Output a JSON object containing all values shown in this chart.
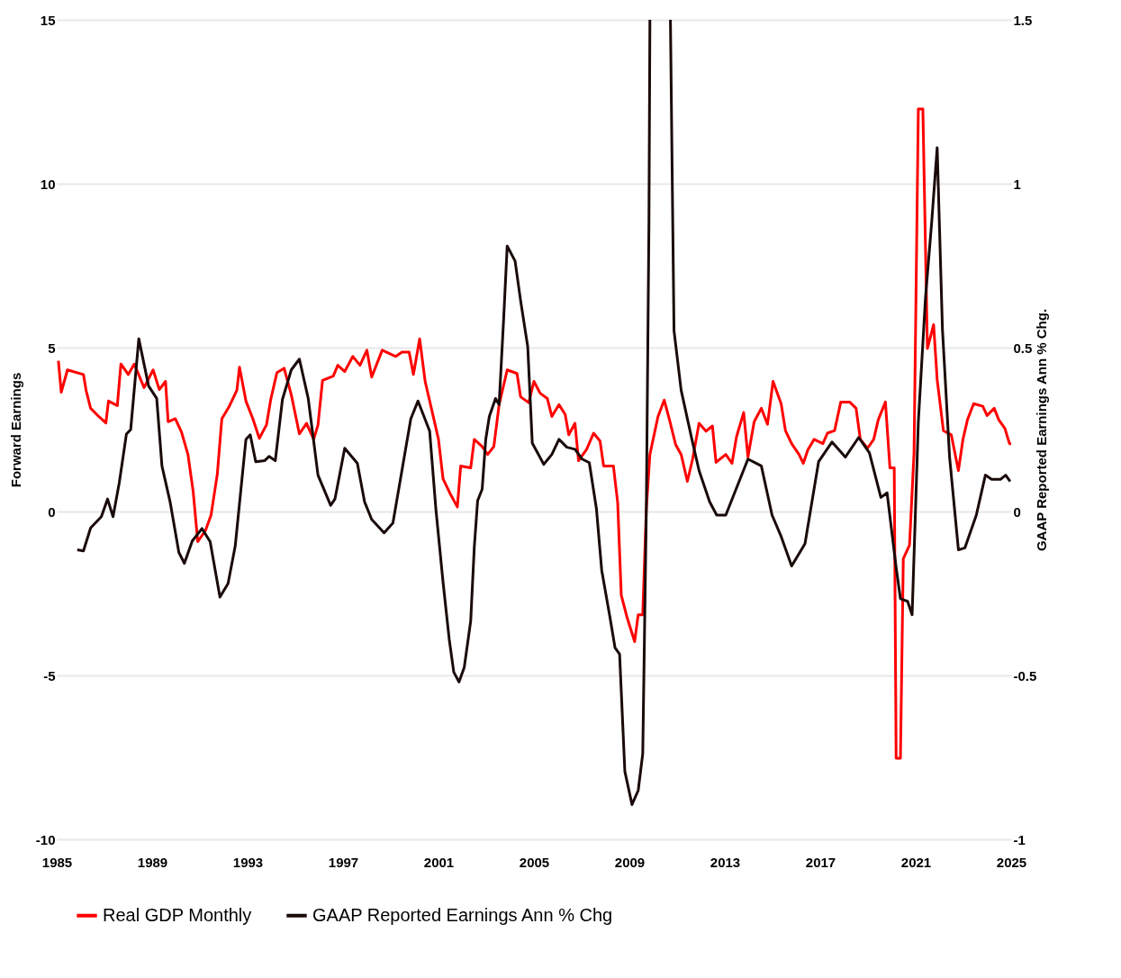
{
  "chart_data": {
    "type": "line",
    "ylabel": "Forward Earnings",
    "y2label": "GAAP Reported Earnings  Ann % Chg.",
    "xlim": [
      1985,
      2025
    ],
    "xticks": [
      1985,
      1989,
      1993,
      1997,
      2001,
      2005,
      2009,
      2013,
      2017,
      2021,
      2025
    ],
    "ylim": [
      -10,
      15
    ],
    "yticks": [
      -10,
      -5,
      0,
      5,
      10,
      15
    ],
    "y2lim": [
      -1,
      1.5
    ],
    "y2ticks": [
      -1,
      -0.5,
      0,
      0.5,
      1,
      1.5
    ],
    "grid": "y",
    "legend": "bottom",
    "line_style": "solid",
    "series": [
      {
        "name": "Real GDP Monthly",
        "color": "#ff0000",
        "x": [
          1985.07,
          1985.19,
          1985.45,
          1986.12,
          1986.23,
          1986.42,
          1986.76,
          1987.06,
          1987.17,
          1987.54,
          1987.69,
          1988.0,
          1988.25,
          1988.66,
          1989.04,
          1989.3,
          1989.56,
          1989.67,
          1989.97,
          1990.23,
          1990.5,
          1990.72,
          1990.91,
          1991.24,
          1991.47,
          1991.73,
          1991.92,
          1992.21,
          1992.55,
          1992.66,
          1992.93,
          1993.22,
          1993.49,
          1993.79,
          1993.97,
          1994.23,
          1994.53,
          1994.83,
          1995.17,
          1995.47,
          1995.77,
          1995.95,
          1996.14,
          1996.59,
          1996.78,
          1997.07,
          1997.41,
          1997.71,
          1998.0,
          1998.2,
          1998.64,
          1999.21,
          1999.47,
          1999.77,
          1999.95,
          2000.21,
          2000.44,
          2000.78,
          2001.0,
          2001.19,
          2001.52,
          2001.79,
          2001.93,
          2002.35,
          2002.5,
          2002.83,
          2003.06,
          2003.32,
          2003.54,
          2003.88,
          2004.29,
          2004.44,
          2004.78,
          2005.0,
          2005.26,
          2005.56,
          2005.75,
          2006.05,
          2006.31,
          2006.46,
          2006.72,
          2006.87,
          2007.21,
          2007.5,
          2007.77,
          2007.92,
          2008.33,
          2008.51,
          2008.66,
          2008.89,
          2009.22,
          2009.37,
          2009.56,
          2009.71,
          2009.86,
          2010.2,
          2010.46,
          2010.68,
          2010.94,
          2011.17,
          2011.43,
          2011.65,
          2011.92,
          2012.21,
          2012.48,
          2012.63,
          2013.04,
          2013.3,
          2013.49,
          2013.79,
          2013.97,
          2014.23,
          2014.53,
          2014.79,
          2015.02,
          2015.36,
          2015.54,
          2015.8,
          2016.11,
          2016.29,
          2016.48,
          2016.74,
          2017.11,
          2017.3,
          2017.6,
          2017.86,
          2018.23,
          2018.5,
          2018.68,
          2018.98,
          2019.24,
          2019.43,
          2019.73,
          2019.92,
          2020.1,
          2020.18,
          2020.36,
          2020.48,
          2020.74,
          2020.93,
          2021.11,
          2021.3,
          2021.49,
          2021.75,
          2021.9,
          2022.16,
          2022.49,
          2022.79,
          2022.98,
          2023.17,
          2023.43,
          2023.81,
          2023.99,
          2024.29,
          2024.48,
          2024.74,
          2024.93,
          2025.0
        ],
        "values": [
          4.6,
          3.64,
          4.32,
          4.18,
          3.7,
          3.15,
          2.9,
          2.7,
          3.37,
          3.23,
          4.5,
          4.18,
          4.5,
          3.78,
          4.32,
          3.72,
          3.97,
          2.74,
          2.83,
          2.42,
          1.74,
          0.6,
          -0.92,
          -0.57,
          -0.1,
          1.14,
          2.83,
          3.18,
          3.7,
          4.4,
          3.37,
          2.83,
          2.23,
          2.64,
          3.42,
          4.24,
          4.37,
          3.56,
          2.37,
          2.69,
          2.2,
          2.64,
          4.0,
          4.13,
          4.46,
          4.27,
          4.73,
          4.46,
          4.92,
          4.1,
          4.92,
          4.73,
          4.86,
          4.86,
          4.18,
          5.27,
          3.97,
          2.9,
          2.2,
          1.0,
          0.5,
          0.14,
          1.39,
          1.33,
          2.2,
          1.98,
          1.74,
          1.98,
          3.26,
          4.32,
          4.21,
          3.5,
          3.32,
          3.97,
          3.61,
          3.45,
          2.9,
          3.26,
          2.96,
          2.34,
          2.69,
          1.55,
          1.9,
          2.39,
          2.15,
          1.39,
          1.39,
          0.27,
          -2.55,
          -3.2,
          -3.97,
          -3.15,
          -3.15,
          0.08,
          1.74,
          2.9,
          3.4,
          2.8,
          2.04,
          1.74,
          0.92,
          1.6,
          2.69,
          2.45,
          2.61,
          1.5,
          1.74,
          1.47,
          2.28,
          3.02,
          1.66,
          2.74,
          3.15,
          2.66,
          3.97,
          3.29,
          2.47,
          2.07,
          1.74,
          1.47,
          1.88,
          2.2,
          2.07,
          2.39,
          2.47,
          3.34,
          3.34,
          3.15,
          2.2,
          1.93,
          2.2,
          2.8,
          3.34,
          1.33,
          1.33,
          -7.53,
          -7.53,
          -1.44,
          -1.03,
          1.79,
          12.28,
          12.28,
          4.97,
          5.7,
          4.02,
          2.47,
          2.34,
          1.25,
          2.2,
          2.8,
          3.29,
          3.21,
          2.93,
          3.15,
          2.8,
          2.53,
          2.07,
          2.07
        ]
      },
      {
        "name": "GAAP Reported Earnings Ann % Chg",
        "color": "#1a0a0a",
        "axis": "y2",
        "x": [
          1985.86,
          1986.12,
          1986.42,
          1986.87,
          1987.13,
          1987.36,
          1987.62,
          1987.92,
          1988.1,
          1988.44,
          1988.85,
          1989.19,
          1989.41,
          1989.75,
          1990.12,
          1990.35,
          1990.68,
          1991.09,
          1991.43,
          1991.84,
          1992.18,
          1992.48,
          1992.93,
          1993.11,
          1993.34,
          1993.71,
          1993.9,
          1994.16,
          1994.46,
          1994.83,
          1995.17,
          1995.54,
          1995.95,
          1996.48,
          1996.66,
          1997.07,
          1997.6,
          1997.9,
          1998.2,
          1998.72,
          1999.09,
          1999.5,
          1999.84,
          2000.14,
          2000.63,
          2000.89,
          2001.19,
          2001.45,
          2001.64,
          2001.86,
          2002.08,
          2002.35,
          2002.5,
          2002.64,
          2002.83,
          2002.98,
          2003.13,
          2003.39,
          2003.54,
          2003.73,
          2003.88,
          2004.21,
          2004.44,
          2004.74,
          2004.93,
          2005.19,
          2005.41,
          2005.75,
          2006.05,
          2006.38,
          2006.72,
          2007.02,
          2007.32,
          2007.62,
          2007.84,
          2008.18,
          2008.4,
          2008.59,
          2008.81,
          2009.11,
          2009.37,
          2009.56,
          2009.71,
          2009.82,
          2009.86,
          2010.3,
          2010.72,
          2010.87,
          2011.17,
          2011.62,
          2011.92,
          2012.36,
          2012.66,
          2013.04,
          2013.41,
          2013.97,
          2014.53,
          2014.98,
          2015.36,
          2015.8,
          2016.36,
          2016.93,
          2017.49,
          2018.05,
          2018.61,
          2019.06,
          2019.54,
          2019.8,
          2020.18,
          2020.36,
          2020.66,
          2020.85,
          2021.11,
          2021.41,
          2021.67,
          2021.9,
          2022.12,
          2022.42,
          2022.79,
          2023.06,
          2023.54,
          2023.92,
          2024.18,
          2024.55,
          2024.77,
          2024.96
        ],
        "values": [
          -0.117,
          -0.12,
          -0.05,
          -0.016,
          0.038,
          -0.016,
          0.087,
          0.236,
          0.25,
          0.527,
          0.383,
          0.345,
          0.139,
          0.03,
          -0.125,
          -0.158,
          -0.09,
          -0.052,
          -0.092,
          -0.261,
          -0.22,
          -0.106,
          0.22,
          0.234,
          0.152,
          0.155,
          0.168,
          0.155,
          0.342,
          0.432,
          0.465,
          0.345,
          0.111,
          0.019,
          0.038,
          0.193,
          0.147,
          0.03,
          -0.024,
          -0.065,
          -0.035,
          0.139,
          0.283,
          0.337,
          0.245,
          0.008,
          -0.215,
          -0.39,
          -0.49,
          -0.52,
          -0.475,
          -0.334,
          -0.109,
          0.033,
          0.068,
          0.22,
          0.29,
          0.345,
          0.326,
          0.587,
          0.81,
          0.764,
          0.644,
          0.503,
          0.209,
          0.174,
          0.144,
          0.174,
          0.22,
          0.196,
          0.19,
          0.16,
          0.149,
          0.008,
          -0.179,
          -0.32,
          -0.416,
          -0.435,
          -0.793,
          -0.894,
          -0.851,
          -0.739,
          0.008,
          0.88,
          1.5,
          null,
          1.5,
          0.552,
          0.37,
          0.22,
          0.125,
          0.03,
          -0.011,
          -0.011,
          0.057,
          0.16,
          0.139,
          -0.011,
          -0.076,
          -0.166,
          -0.098,
          0.152,
          0.212,
          0.166,
          0.226,
          0.179,
          0.043,
          0.057,
          -0.171,
          -0.266,
          -0.274,
          -0.315,
          0.274,
          0.652,
          0.883,
          1.11,
          0.557,
          0.166,
          -0.117,
          -0.111,
          -0.011,
          0.111,
          0.098,
          0.098,
          0.111,
          0.092
        ]
      }
    ]
  }
}
